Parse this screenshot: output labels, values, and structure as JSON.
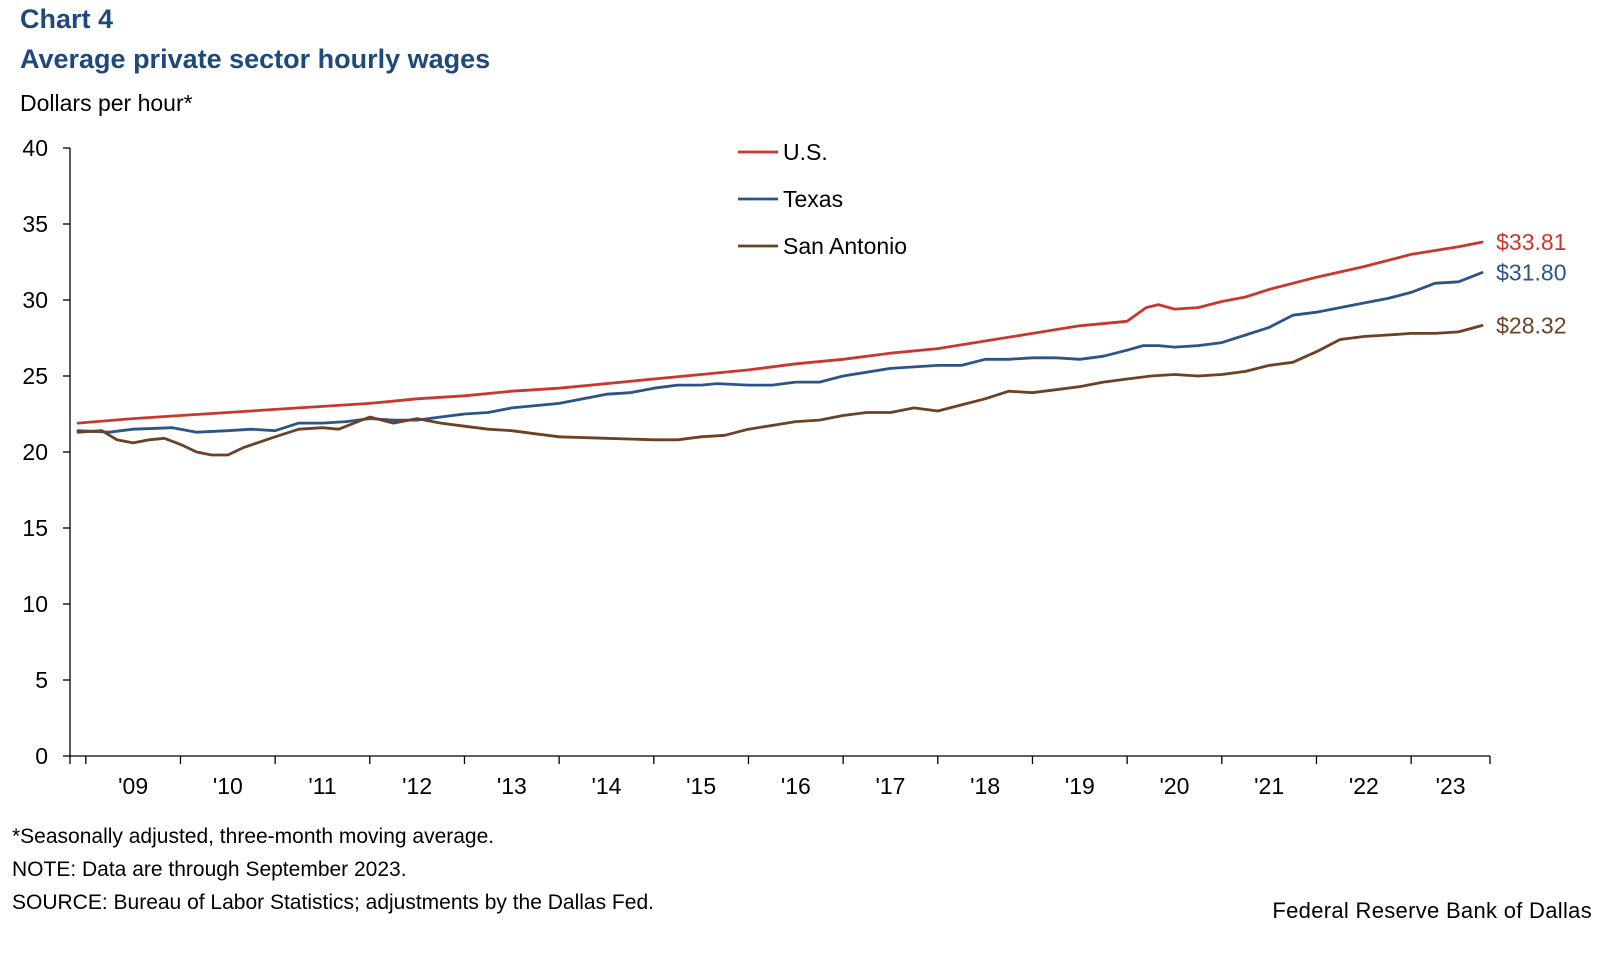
{
  "header": {
    "chart_number": "Chart 4",
    "title": "Average private sector hourly wages",
    "y_unit": "Dollars per hour*"
  },
  "notes": {
    "footnote": "*Seasonally adjusted, three-month moving average.",
    "note": "NOTE: Data are through September 2023.",
    "source": "SOURCE: Bureau of Labor Statistics; adjustments by the Dallas Fed."
  },
  "credit": "Federal Reserve Bank of Dallas",
  "chart_data": {
    "type": "line",
    "title": "Average private sector hourly wages",
    "ylabel": "Dollars per hour*",
    "xlabel": "",
    "ylim": [
      0,
      40
    ],
    "yticks": [
      0,
      5,
      10,
      15,
      20,
      25,
      30,
      35,
      40
    ],
    "xlim": [
      2008.833,
      2023.833
    ],
    "xticks": [
      "'09",
      "'10",
      "'11",
      "'12",
      "'13",
      "'14",
      "'15",
      "'16",
      "'17",
      "'18",
      "'19",
      "'20",
      "'21",
      "'22",
      "'23"
    ],
    "grid": false,
    "legend_position": "top-center",
    "series": [
      {
        "name": "U.S.",
        "color": "#c8382e",
        "end_label": "$33.81",
        "points": [
          [
            2008.917,
            21.9
          ],
          [
            2009.5,
            22.2
          ],
          [
            2010.0,
            22.4
          ],
          [
            2010.5,
            22.6
          ],
          [
            2011.0,
            22.8
          ],
          [
            2011.5,
            23.0
          ],
          [
            2012.0,
            23.2
          ],
          [
            2012.5,
            23.5
          ],
          [
            2013.0,
            23.7
          ],
          [
            2013.5,
            24.0
          ],
          [
            2014.0,
            24.2
          ],
          [
            2014.5,
            24.5
          ],
          [
            2015.0,
            24.8
          ],
          [
            2015.5,
            25.1
          ],
          [
            2016.0,
            25.4
          ],
          [
            2016.5,
            25.8
          ],
          [
            2017.0,
            26.1
          ],
          [
            2017.5,
            26.5
          ],
          [
            2018.0,
            26.8
          ],
          [
            2018.5,
            27.3
          ],
          [
            2019.0,
            27.8
          ],
          [
            2019.5,
            28.3
          ],
          [
            2020.0,
            28.6
          ],
          [
            2020.2,
            29.5
          ],
          [
            2020.33,
            29.7
          ],
          [
            2020.5,
            29.4
          ],
          [
            2020.75,
            29.5
          ],
          [
            2021.0,
            29.9
          ],
          [
            2021.25,
            30.2
          ],
          [
            2021.5,
            30.7
          ],
          [
            2022.0,
            31.5
          ],
          [
            2022.5,
            32.2
          ],
          [
            2023.0,
            33.0
          ],
          [
            2023.5,
            33.5
          ],
          [
            2023.75,
            33.81
          ]
        ]
      },
      {
        "name": "Texas",
        "color": "#2c5585",
        "end_label": "$31.80",
        "points": [
          [
            2008.917,
            21.4
          ],
          [
            2009.25,
            21.3
          ],
          [
            2009.5,
            21.5
          ],
          [
            2009.917,
            21.6
          ],
          [
            2010.17,
            21.3
          ],
          [
            2010.5,
            21.4
          ],
          [
            2010.75,
            21.5
          ],
          [
            2011.0,
            21.4
          ],
          [
            2011.25,
            21.9
          ],
          [
            2011.5,
            21.9
          ],
          [
            2011.75,
            22.0
          ],
          [
            2012.0,
            22.2
          ],
          [
            2012.25,
            22.1
          ],
          [
            2012.5,
            22.1
          ],
          [
            2012.75,
            22.3
          ],
          [
            2013.0,
            22.5
          ],
          [
            2013.25,
            22.6
          ],
          [
            2013.5,
            22.9
          ],
          [
            2014.0,
            23.2
          ],
          [
            2014.5,
            23.8
          ],
          [
            2014.75,
            23.9
          ],
          [
            2015.0,
            24.2
          ],
          [
            2015.25,
            24.4
          ],
          [
            2015.5,
            24.4
          ],
          [
            2015.67,
            24.5
          ],
          [
            2016.0,
            24.4
          ],
          [
            2016.25,
            24.4
          ],
          [
            2016.5,
            24.6
          ],
          [
            2016.75,
            24.6
          ],
          [
            2017.0,
            25.0
          ],
          [
            2017.5,
            25.5
          ],
          [
            2018.0,
            25.7
          ],
          [
            2018.25,
            25.7
          ],
          [
            2018.5,
            26.1
          ],
          [
            2018.75,
            26.1
          ],
          [
            2019.0,
            26.2
          ],
          [
            2019.25,
            26.2
          ],
          [
            2019.5,
            26.1
          ],
          [
            2019.75,
            26.3
          ],
          [
            2020.0,
            26.7
          ],
          [
            2020.17,
            27.0
          ],
          [
            2020.33,
            27.0
          ],
          [
            2020.5,
            26.9
          ],
          [
            2020.75,
            27.0
          ],
          [
            2021.0,
            27.2
          ],
          [
            2021.25,
            27.7
          ],
          [
            2021.5,
            28.2
          ],
          [
            2021.75,
            29.0
          ],
          [
            2022.0,
            29.2
          ],
          [
            2022.25,
            29.5
          ],
          [
            2022.5,
            29.8
          ],
          [
            2022.75,
            30.1
          ],
          [
            2023.0,
            30.5
          ],
          [
            2023.25,
            31.1
          ],
          [
            2023.5,
            31.2
          ],
          [
            2023.75,
            31.8
          ]
        ]
      },
      {
        "name": "San Antonio",
        "color": "#6b4226",
        "end_label": "$28.32",
        "points": [
          [
            2008.917,
            21.3
          ],
          [
            2009.17,
            21.4
          ],
          [
            2009.33,
            20.8
          ],
          [
            2009.5,
            20.6
          ],
          [
            2009.67,
            20.8
          ],
          [
            2009.83,
            20.9
          ],
          [
            2010.0,
            20.5
          ],
          [
            2010.17,
            20.0
          ],
          [
            2010.33,
            19.8
          ],
          [
            2010.5,
            19.8
          ],
          [
            2010.67,
            20.3
          ],
          [
            2011.0,
            21.0
          ],
          [
            2011.25,
            21.5
          ],
          [
            2011.5,
            21.6
          ],
          [
            2011.67,
            21.5
          ],
          [
            2012.0,
            22.3
          ],
          [
            2012.25,
            21.9
          ],
          [
            2012.5,
            22.2
          ],
          [
            2012.75,
            21.9
          ],
          [
            2013.0,
            21.7
          ],
          [
            2013.25,
            21.5
          ],
          [
            2013.5,
            21.4
          ],
          [
            2013.75,
            21.2
          ],
          [
            2014.0,
            21.0
          ],
          [
            2014.5,
            20.9
          ],
          [
            2015.0,
            20.8
          ],
          [
            2015.25,
            20.8
          ],
          [
            2015.5,
            21.0
          ],
          [
            2015.75,
            21.1
          ],
          [
            2016.0,
            21.5
          ],
          [
            2016.5,
            22.0
          ],
          [
            2016.75,
            22.1
          ],
          [
            2017.0,
            22.4
          ],
          [
            2017.25,
            22.6
          ],
          [
            2017.5,
            22.6
          ],
          [
            2017.75,
            22.9
          ],
          [
            2018.0,
            22.7
          ],
          [
            2018.25,
            23.1
          ],
          [
            2018.5,
            23.5
          ],
          [
            2018.75,
            24.0
          ],
          [
            2019.0,
            23.9
          ],
          [
            2019.25,
            24.1
          ],
          [
            2019.5,
            24.3
          ],
          [
            2019.75,
            24.6
          ],
          [
            2020.0,
            24.8
          ],
          [
            2020.25,
            25.0
          ],
          [
            2020.5,
            25.1
          ],
          [
            2020.75,
            25.0
          ],
          [
            2021.0,
            25.1
          ],
          [
            2021.25,
            25.3
          ],
          [
            2021.5,
            25.7
          ],
          [
            2021.75,
            25.9
          ],
          [
            2022.0,
            26.6
          ],
          [
            2022.25,
            27.4
          ],
          [
            2022.5,
            27.6
          ],
          [
            2022.75,
            27.7
          ],
          [
            2023.0,
            27.8
          ],
          [
            2023.25,
            27.8
          ],
          [
            2023.5,
            27.9
          ],
          [
            2023.75,
            28.32
          ]
        ]
      }
    ]
  }
}
